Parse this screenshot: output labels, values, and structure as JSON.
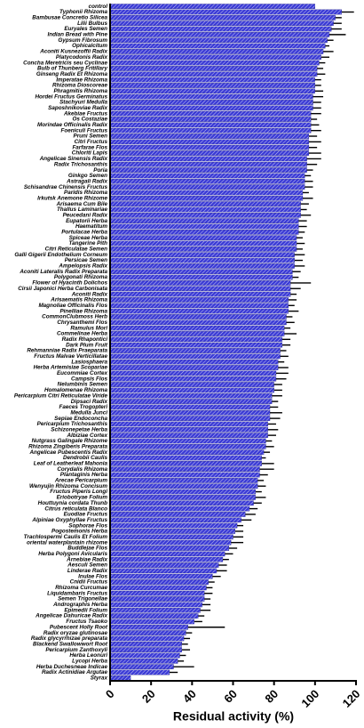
{
  "chart_data": {
    "type": "barh",
    "xlabel": "Residual activity (%)",
    "xlim": [
      0,
      120
    ],
    "xticks": [
      0,
      20,
      40,
      60,
      80,
      100,
      120
    ],
    "color": "#3b3bd6",
    "categories": [
      "control",
      "Typhonii Rhizoma",
      "Bambusae Concretio Silicea",
      "Lilii Bulbus",
      "Euryales Semen",
      "Indian Bread with Pine",
      "Gypsum Fibrosum",
      "Ophicalcitum",
      "Aconiti Kusnezoffii Radix",
      "Platycodonis Radix",
      "Concha Meretricis seu Cyclinae",
      "Bulb of Thunberg Fritillary",
      "Ginseng Radix Et Rhizoma",
      "Imperatae Rhizoma",
      "Rhizoma Dioscoreae",
      "Phragmitis Rhizoma",
      "Hordei Fructus Germinatus",
      "Stachyuri Medulla",
      "Saposhnikoviae Radix",
      "Akebiae Fructus",
      "Os Costaziae",
      "Morindae Officinalis Radix",
      "Foeniculi Fructus",
      "Pruni Semen",
      "Citri Fructus",
      "Farfarae Flos",
      "Chloriti Lapis",
      "Angelicae Sinensis Radix",
      "Radix Trichosanthis",
      "Poria",
      "Ginkgo Semen",
      "Astragali Radix",
      "Schisandrae Chinensis Fructus",
      "Paridis Rhizoma",
      "Irkutsk Anemone Rhizome",
      "Arisaema Cum Bile",
      "Thallus Laminariae",
      "Peucedani Radix",
      "Eupatorii Herba",
      "Haematitum",
      "Portulacae Herba",
      "Spiceae Herba",
      "Tangerine Pith",
      "Citri Reticulatae Semen",
      "Galli Gigerii Endothelium Corneum",
      "Persicae Semen",
      "Ampelopsis Radix",
      "Aconiti Lateralis Radix Preparata",
      "Polygonati Rhizoma",
      "Flower of Hyacinth Dolichos",
      "Cirsii Japonici Herba Carbonisata",
      "Aconiti Radix",
      "Arisaematis Rhizoma",
      "Magnoliae Officinalis Flos",
      "Pinelliae Rhizoma",
      "CommonClubmoss Herb",
      "Chrysanthemi Flos",
      "Ramulus Mori",
      "Commelinae Herba",
      "Radix Rhapontici",
      "Dark Plum Fruit",
      "Rehmanniae Radix Praeparata",
      "Fructus Malvae Verticillatae",
      "Lasiosphaera",
      "Herba Artemisiae Scopariae",
      "Eucommiae Cortex",
      "Campsis Flos",
      "Nelumbinis Semen",
      "Homalomenae Rhizoma",
      "Pericarpium Citri Reticulatae Viride",
      "Dipsaci Radix",
      "Faeces Trogopteri",
      "Medulla Junci",
      "Sepiae Endoconcha",
      "Pericarpium Trichosanthis",
      "Schizonepetae Herba",
      "Albiziae Cortex",
      "Nutgrass Galingale Rhizome",
      "Rhizoma Zingiberis Preparata",
      "Angelicae Pubescentis Radix",
      "Dendrobii Caulis",
      "Leaf of Leatherleaf Mahonia",
      "Corydalis Rhizoma",
      "Plantaginis Herba",
      "Arecae Pericarpium",
      "Wenyujin Rhizoma Concisum",
      "Fructus Piperis Longi",
      "Eriobotryae Folium",
      "Houttuynia cordata Thunb",
      "Citrus reticulata Blanco",
      "Euodiae Fructus",
      "Alpiniae Oxyphyllae Fructus",
      "Sophorae Flos",
      "Pogostemonis Herba",
      "Trachlospermi Caulis Et Folium",
      "oriental waterplantain rhizome",
      "Buddlejae Flos",
      "Herba Polygoni Avicularis",
      "Arnebiae Radix",
      "Aesculi Semen",
      "Linderae Radix",
      "Inulae Flos",
      "Cnidii Fructus",
      "Rhizoma Curcumae",
      "Liquidambaris Fructus",
      "Semen Trigonellae",
      "Andrographis Herba",
      "Epimedii Folium",
      "Angelicae Dahuricae Radix",
      "Fructus Tsaoko",
      "Pubescent Holly Root",
      "Radix oryzae glutinosae",
      "Radix glycyrrhizae preparata",
      "Blackend Swallowwort Root",
      "Pericarpium Zanthoxyli",
      "Herba Leonuri",
      "Lycopi Herba",
      "Herba Duchesneae Indicae",
      "Radix Actinidiae Argutae",
      "Styrax"
    ],
    "values": [
      100,
      113,
      110,
      109,
      108,
      107,
      106,
      105,
      104,
      103,
      102,
      101,
      101,
      100,
      100,
      100,
      99,
      99,
      99,
      98,
      98,
      98,
      98,
      97,
      97,
      97,
      97,
      96,
      96,
      96,
      95,
      95,
      95,
      94,
      94,
      93,
      93,
      93,
      92,
      92,
      92,
      91,
      91,
      91,
      90,
      90,
      90,
      89,
      89,
      88,
      88,
      88,
      87,
      87,
      87,
      86,
      86,
      85,
      85,
      84,
      84,
      83,
      83,
      82,
      82,
      81,
      81,
      80,
      80,
      79,
      79,
      78,
      78,
      78,
      77,
      77,
      77,
      76,
      76,
      75,
      74,
      74,
      73,
      73,
      72,
      72,
      71,
      71,
      70,
      68,
      66,
      64,
      62,
      61,
      60,
      59,
      58,
      56,
      55,
      53,
      52,
      50,
      48,
      47,
      46,
      46,
      45,
      44,
      43,
      41,
      38,
      37,
      36,
      35,
      35,
      34,
      33,
      31,
      29,
      10
    ],
    "errors": [
      0,
      6,
      3,
      4,
      5,
      8,
      3,
      2,
      5,
      4,
      3,
      3,
      4,
      3,
      3,
      4,
      5,
      4,
      4,
      5,
      3,
      4,
      5,
      4,
      6,
      4,
      6,
      7,
      5,
      3,
      3,
      4,
      4,
      3,
      5,
      4,
      3,
      5,
      4,
      4,
      3,
      3,
      4,
      3,
      5,
      4,
      5,
      4,
      3,
      10,
      5,
      3,
      4,
      3,
      5,
      3,
      4,
      3,
      6,
      4,
      4,
      3,
      4,
      3,
      5,
      6,
      5,
      4,
      4,
      5,
      3,
      4,
      6,
      5,
      4,
      5,
      4,
      3,
      4,
      3,
      2,
      6,
      7,
      4,
      3,
      4,
      3,
      5,
      4,
      4,
      5,
      5,
      3,
      4,
      5,
      6,
      4,
      4,
      3,
      4,
      5,
      4,
      3,
      3,
      4,
      3,
      4,
      5,
      3,
      4,
      18,
      3,
      3,
      3,
      4,
      3,
      3,
      10,
      4,
      0
    ]
  }
}
